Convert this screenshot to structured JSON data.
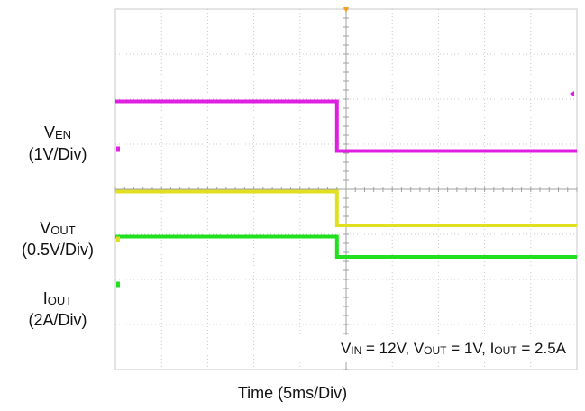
{
  "chart_data": {
    "type": "line",
    "title": "",
    "xlabel": "Time (5ms/Div)",
    "x_unit": "div",
    "xlim": [
      0,
      10
    ],
    "grid": true,
    "grid_divisions": {
      "x": 10,
      "y": 8
    },
    "trigger_marker_color": "#f0a020",
    "series": [
      {
        "id": "ven",
        "label_main": "V",
        "label_sub": "EN",
        "scale": "(1V/Div)",
        "color": "#e020e0",
        "points": [
          [
            0,
            5.95
          ],
          [
            4.8,
            5.95
          ],
          [
            4.8,
            4.85
          ],
          [
            10,
            4.85
          ]
        ]
      },
      {
        "id": "vout",
        "label_main": "V",
        "label_sub": "OUT",
        "scale": "(0.5V/Div)",
        "color": "#e0e020",
        "points": [
          [
            0,
            3.95
          ],
          [
            4.8,
            3.95
          ],
          [
            4.8,
            3.2
          ],
          [
            10,
            3.2
          ]
        ]
      },
      {
        "id": "iout",
        "label_main": "I",
        "label_sub": "OUT",
        "scale": "(2A/Div)",
        "color": "#20e020",
        "points": [
          [
            0,
            2.95
          ],
          [
            4.8,
            2.95
          ],
          [
            4.8,
            2.5
          ],
          [
            10,
            2.5
          ]
        ]
      }
    ],
    "conditions": [
      {
        "main": "V",
        "sub": "IN",
        "value": " = 12V, "
      },
      {
        "main": "V",
        "sub": "OUT",
        "value": " = 1V, "
      },
      {
        "main": "I",
        "sub": "OUT",
        "value": " = 2.5A"
      }
    ]
  }
}
